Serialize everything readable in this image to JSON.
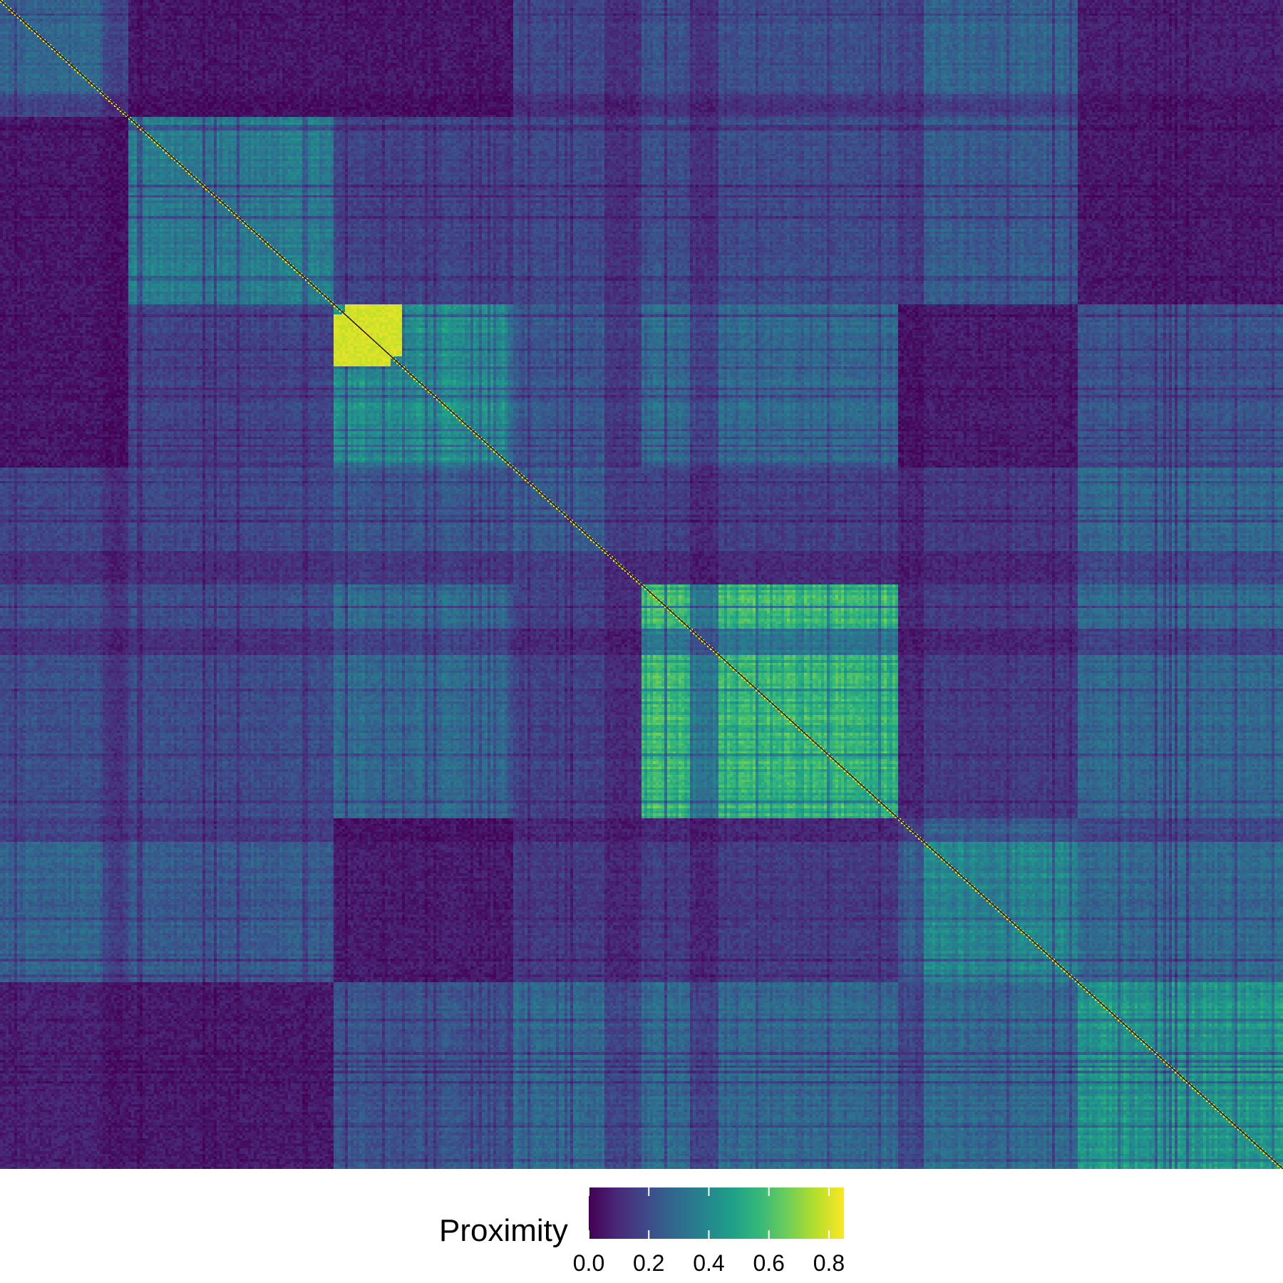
{
  "chart_data": {
    "type": "heatmap",
    "title": "",
    "xlabel": "",
    "ylabel": "",
    "grid": false,
    "colormap": "viridis",
    "colormap_stops": [
      "#440154",
      "#482878",
      "#3e4989",
      "#31688e",
      "#26828e",
      "#1f9e89",
      "#35b779",
      "#6ece58",
      "#b5de2b",
      "#fde725"
    ],
    "value_range": [
      0.0,
      0.85
    ],
    "diagonal_value": 0.85,
    "diagonal_color": "#1a1a1a",
    "matrix_order": "symmetric, clustered",
    "block_structure_approx": {
      "breaks": [
        0,
        0.1,
        0.26,
        0.4,
        0.5,
        0.7,
        0.84,
        1.0
      ],
      "within_cluster_proximity": [
        0.28,
        0.35,
        0.42,
        0.25,
        0.55,
        0.4,
        0.45
      ],
      "between_cluster_proximity_range": [
        0.05,
        0.3
      ],
      "hotspot": {
        "position": [
          0.28,
          0.29
        ],
        "proximity": 0.82
      }
    },
    "legend": {
      "title": "Proximity",
      "position": "bottom",
      "tick_labels": [
        "0.0",
        "0.2",
        "0.4",
        "0.6",
        "0.8"
      ],
      "tick_values": [
        0.0,
        0.2,
        0.4,
        0.6,
        0.8
      ]
    }
  }
}
